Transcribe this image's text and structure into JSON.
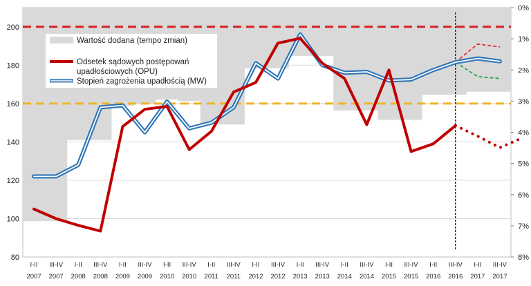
{
  "chart_data": {
    "type": "line",
    "x_labels": [
      [
        "I-II",
        "2007"
      ],
      [
        "III-IV",
        "2007"
      ],
      [
        "I-II",
        "2008"
      ],
      [
        "III-IV",
        "2008"
      ],
      [
        "I-II",
        "2009"
      ],
      [
        "III-IV",
        "2009"
      ],
      [
        "I-II",
        "2010"
      ],
      [
        "III-IV",
        "2010"
      ],
      [
        "I-II",
        "2011"
      ],
      [
        "III-IV",
        "2011"
      ],
      [
        "I-II",
        "2012"
      ],
      [
        "III-IV",
        "2012"
      ],
      [
        "I-II",
        "2013"
      ],
      [
        "III-IV",
        "2013"
      ],
      [
        "I-II",
        "2014"
      ],
      [
        "III-IV",
        "2014"
      ],
      [
        "I-II",
        "2015"
      ],
      [
        "III-IV",
        "2015"
      ],
      [
        "I-II",
        "2016"
      ],
      [
        "III-IV",
        "2016"
      ],
      [
        "I-II",
        "2017"
      ],
      [
        "III-IV",
        "2017"
      ]
    ],
    "y_left": {
      "min": 80,
      "max": 210,
      "ticks": [
        80,
        100,
        120,
        140,
        160,
        180,
        200
      ]
    },
    "y_right": {
      "min": 0,
      "max": 8,
      "inverted": true,
      "ticks": [
        "0%",
        "1%",
        "2%",
        "3%",
        "4%",
        "5%",
        "6%",
        "7%",
        "8%"
      ]
    },
    "grid": true,
    "legend": [
      {
        "label": "Wartość dodana (tempo zmian)",
        "type": "area"
      },
      {
        "label": "Odsetek sądowych postępowań upadłościowych (OPU)",
        "label_line1": "Odsetek sądowych postępowań",
        "label_line2": "upadłościowych (OPU)",
        "type": "line"
      },
      {
        "label": "Stopień zagrożenia upadłością (MW)",
        "type": "double-line"
      }
    ],
    "series": [
      {
        "name": "Wartość dodana (tempo zmian)",
        "axis": "right",
        "values": [
          6.85,
          6.85,
          4.25,
          4.25,
          3.15,
          3.1,
          2.95,
          3.0,
          3.75,
          3.75,
          1.95,
          1.95,
          1.55,
          1.55,
          3.3,
          3.3,
          3.6,
          3.6,
          2.8,
          2.8,
          2.7,
          2.7
        ]
      },
      {
        "name": "Odsetek sądowych postępowań upadłościowych (OPU)",
        "axis": "left",
        "values": [
          105,
          100,
          96.5,
          93.5,
          148,
          157,
          158.5,
          136,
          145.5,
          166,
          171,
          191.5,
          194,
          181,
          173,
          149,
          177.5,
          135,
          139,
          148.5
        ],
        "forecast": [
          148.5,
          143,
          137,
          142
        ]
      },
      {
        "name": "Stopień zagrożenia upadłością (MW)",
        "axis": "left",
        "values": [
          122,
          122,
          128,
          158,
          159,
          145,
          161,
          147,
          150,
          158,
          181,
          173,
          196,
          180,
          176,
          176.5,
          172,
          172.5,
          177.5,
          181.5,
          183.5,
          182
        ],
        "forecast_upper": [
          181.5,
          191,
          189.5
        ],
        "forecast_lower": [
          181.5,
          174,
          173
        ]
      }
    ],
    "reference_lines": [
      {
        "axis": "left",
        "value": 200,
        "color": "#d62020"
      },
      {
        "axis": "left",
        "value": 160,
        "color": "#f0b428"
      }
    ],
    "forecast_start_index": 19
  },
  "colors": {
    "area": "#d9d9d9",
    "opu": "#c00000",
    "mw_outer": "#2e75b6",
    "mw_inner": "#ffffff",
    "upper_forecast": "#e53030",
    "lower_forecast": "#2aa245",
    "grid": "#d9d9d9",
    "vline": "#000000"
  }
}
